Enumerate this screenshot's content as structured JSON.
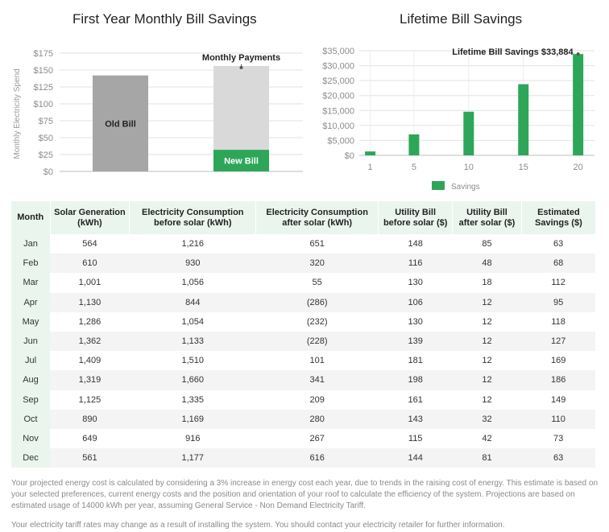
{
  "chart_data": [
    {
      "type": "bar",
      "title": "First Year Monthly Bill Savings",
      "ylabel": "Monthly Electricity Spend",
      "ylim": [
        0,
        175
      ],
      "yticks": [
        "$0",
        "$25",
        "$50",
        "$75",
        "$100",
        "$125",
        "$150",
        "$175"
      ],
      "ytick_values": [
        0,
        25,
        50,
        75,
        100,
        125,
        150,
        175
      ],
      "old_bill": {
        "label": "Old Bill",
        "value": 142,
        "color": "#a6a6a6"
      },
      "new_bill": {
        "label": "New Bill",
        "value": 32,
        "color": "#2ea65a"
      },
      "monthly_payments": {
        "label": "Monthly Payments",
        "value": 156,
        "color": "#d9d9d9"
      },
      "grid": true
    },
    {
      "type": "bar",
      "title": "Lifetime Bill Savings",
      "ylim": [
        0,
        35000
      ],
      "yticks": [
        "$0",
        "$5,000",
        "$10,000",
        "$15,000",
        "$20,000",
        "$25,000",
        "$30,000",
        "$35,000"
      ],
      "ytick_values": [
        0,
        5000,
        10000,
        15000,
        20000,
        25000,
        30000,
        35000
      ],
      "xticks": [
        "1",
        "5",
        "10",
        "15",
        "20"
      ],
      "xtick_positions": [
        1,
        5,
        10,
        15,
        20
      ],
      "x": [
        1,
        5,
        10,
        15,
        20
      ],
      "values": [
        1300,
        7000,
        14600,
        23800,
        33884
      ],
      "series_name": "Savings",
      "annotation": "Lifetime Bill Savings $33,884",
      "color": "#2ea65a",
      "legend": "bottom",
      "grid": true
    }
  ],
  "table": {
    "headers": [
      "Month",
      "Solar Generation (kWh)",
      "Electricity Consumption before solar (kWh)",
      "Electricity Consumption after solar (kWh)",
      "Utility Bill before solar ($)",
      "Utility Bill after solar ($)",
      "Estimated Savings ($)"
    ],
    "rows": [
      [
        "Jan",
        "564",
        "1,216",
        "651",
        "148",
        "85",
        "63"
      ],
      [
        "Feb",
        "610",
        "930",
        "320",
        "116",
        "48",
        "68"
      ],
      [
        "Mar",
        "1,001",
        "1,056",
        "55",
        "130",
        "18",
        "112"
      ],
      [
        "Apr",
        "1,130",
        "844",
        "(286)",
        "106",
        "12",
        "95"
      ],
      [
        "May",
        "1,286",
        "1,054",
        "(232)",
        "130",
        "12",
        "118"
      ],
      [
        "Jun",
        "1,362",
        "1,133",
        "(228)",
        "139",
        "12",
        "127"
      ],
      [
        "Jul",
        "1,409",
        "1,510",
        "101",
        "181",
        "12",
        "169"
      ],
      [
        "Aug",
        "1,319",
        "1,660",
        "341",
        "198",
        "12",
        "186"
      ],
      [
        "Sep",
        "1,125",
        "1,335",
        "209",
        "161",
        "12",
        "149"
      ],
      [
        "Oct",
        "890",
        "1,169",
        "280",
        "143",
        "32",
        "110"
      ],
      [
        "Nov",
        "649",
        "916",
        "267",
        "115",
        "42",
        "73"
      ],
      [
        "Dec",
        "561",
        "1,177",
        "616",
        "144",
        "81",
        "63"
      ]
    ]
  },
  "notes": {
    "projection": "Your projected energy cost is calculated by considering a 3% increase in energy cost each year, due to trends in the raising cost of energy. This estimate is based on your selected preferences, current energy costs and the position and orientation of your roof to calculate the efficiency of the system. Projections are based on estimated usage of 14000 kWh per year, assuming General Service - Non Demand Electricity Tariff.",
    "tariff": "Your electricity tariff rates may change as a result of installing the system. You should contact your electricity retailer for further information."
  }
}
